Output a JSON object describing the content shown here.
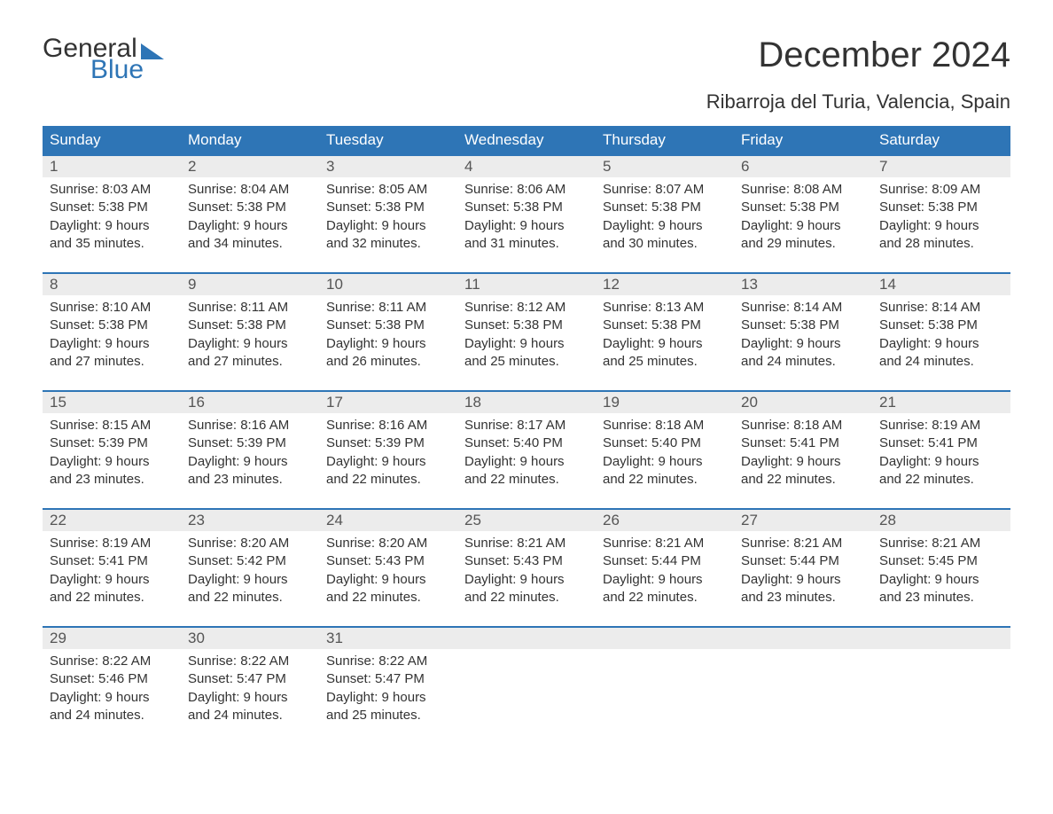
{
  "brand": {
    "word1": "General",
    "word2": "Blue",
    "color_dark": "#333333",
    "color_blue": "#2e75b6"
  },
  "title": "December 2024",
  "location": "Ribarroja del Turia, Valencia, Spain",
  "styling": {
    "header_bg": "#2e75b6",
    "header_text": "#ffffff",
    "daynum_bg": "#ececec",
    "body_text": "#333333",
    "page_bg": "#ffffff",
    "week_border": "#2e75b6",
    "title_fontsize": 40,
    "location_fontsize": 22,
    "head_fontsize": 17,
    "day_fontsize": 15
  },
  "weekdays": [
    "Sunday",
    "Monday",
    "Tuesday",
    "Wednesday",
    "Thursday",
    "Friday",
    "Saturday"
  ],
  "weeks": [
    [
      {
        "n": "1",
        "sunrise": "Sunrise: 8:03 AM",
        "sunset": "Sunset: 5:38 PM",
        "d1": "Daylight: 9 hours",
        "d2": "and 35 minutes."
      },
      {
        "n": "2",
        "sunrise": "Sunrise: 8:04 AM",
        "sunset": "Sunset: 5:38 PM",
        "d1": "Daylight: 9 hours",
        "d2": "and 34 minutes."
      },
      {
        "n": "3",
        "sunrise": "Sunrise: 8:05 AM",
        "sunset": "Sunset: 5:38 PM",
        "d1": "Daylight: 9 hours",
        "d2": "and 32 minutes."
      },
      {
        "n": "4",
        "sunrise": "Sunrise: 8:06 AM",
        "sunset": "Sunset: 5:38 PM",
        "d1": "Daylight: 9 hours",
        "d2": "and 31 minutes."
      },
      {
        "n": "5",
        "sunrise": "Sunrise: 8:07 AM",
        "sunset": "Sunset: 5:38 PM",
        "d1": "Daylight: 9 hours",
        "d2": "and 30 minutes."
      },
      {
        "n": "6",
        "sunrise": "Sunrise: 8:08 AM",
        "sunset": "Sunset: 5:38 PM",
        "d1": "Daylight: 9 hours",
        "d2": "and 29 minutes."
      },
      {
        "n": "7",
        "sunrise": "Sunrise: 8:09 AM",
        "sunset": "Sunset: 5:38 PM",
        "d1": "Daylight: 9 hours",
        "d2": "and 28 minutes."
      }
    ],
    [
      {
        "n": "8",
        "sunrise": "Sunrise: 8:10 AM",
        "sunset": "Sunset: 5:38 PM",
        "d1": "Daylight: 9 hours",
        "d2": "and 27 minutes."
      },
      {
        "n": "9",
        "sunrise": "Sunrise: 8:11 AM",
        "sunset": "Sunset: 5:38 PM",
        "d1": "Daylight: 9 hours",
        "d2": "and 27 minutes."
      },
      {
        "n": "10",
        "sunrise": "Sunrise: 8:11 AM",
        "sunset": "Sunset: 5:38 PM",
        "d1": "Daylight: 9 hours",
        "d2": "and 26 minutes."
      },
      {
        "n": "11",
        "sunrise": "Sunrise: 8:12 AM",
        "sunset": "Sunset: 5:38 PM",
        "d1": "Daylight: 9 hours",
        "d2": "and 25 minutes."
      },
      {
        "n": "12",
        "sunrise": "Sunrise: 8:13 AM",
        "sunset": "Sunset: 5:38 PM",
        "d1": "Daylight: 9 hours",
        "d2": "and 25 minutes."
      },
      {
        "n": "13",
        "sunrise": "Sunrise: 8:14 AM",
        "sunset": "Sunset: 5:38 PM",
        "d1": "Daylight: 9 hours",
        "d2": "and 24 minutes."
      },
      {
        "n": "14",
        "sunrise": "Sunrise: 8:14 AM",
        "sunset": "Sunset: 5:38 PM",
        "d1": "Daylight: 9 hours",
        "d2": "and 24 minutes."
      }
    ],
    [
      {
        "n": "15",
        "sunrise": "Sunrise: 8:15 AM",
        "sunset": "Sunset: 5:39 PM",
        "d1": "Daylight: 9 hours",
        "d2": "and 23 minutes."
      },
      {
        "n": "16",
        "sunrise": "Sunrise: 8:16 AM",
        "sunset": "Sunset: 5:39 PM",
        "d1": "Daylight: 9 hours",
        "d2": "and 23 minutes."
      },
      {
        "n": "17",
        "sunrise": "Sunrise: 8:16 AM",
        "sunset": "Sunset: 5:39 PM",
        "d1": "Daylight: 9 hours",
        "d2": "and 22 minutes."
      },
      {
        "n": "18",
        "sunrise": "Sunrise: 8:17 AM",
        "sunset": "Sunset: 5:40 PM",
        "d1": "Daylight: 9 hours",
        "d2": "and 22 minutes."
      },
      {
        "n": "19",
        "sunrise": "Sunrise: 8:18 AM",
        "sunset": "Sunset: 5:40 PM",
        "d1": "Daylight: 9 hours",
        "d2": "and 22 minutes."
      },
      {
        "n": "20",
        "sunrise": "Sunrise: 8:18 AM",
        "sunset": "Sunset: 5:41 PM",
        "d1": "Daylight: 9 hours",
        "d2": "and 22 minutes."
      },
      {
        "n": "21",
        "sunrise": "Sunrise: 8:19 AM",
        "sunset": "Sunset: 5:41 PM",
        "d1": "Daylight: 9 hours",
        "d2": "and 22 minutes."
      }
    ],
    [
      {
        "n": "22",
        "sunrise": "Sunrise: 8:19 AM",
        "sunset": "Sunset: 5:41 PM",
        "d1": "Daylight: 9 hours",
        "d2": "and 22 minutes."
      },
      {
        "n": "23",
        "sunrise": "Sunrise: 8:20 AM",
        "sunset": "Sunset: 5:42 PM",
        "d1": "Daylight: 9 hours",
        "d2": "and 22 minutes."
      },
      {
        "n": "24",
        "sunrise": "Sunrise: 8:20 AM",
        "sunset": "Sunset: 5:43 PM",
        "d1": "Daylight: 9 hours",
        "d2": "and 22 minutes."
      },
      {
        "n": "25",
        "sunrise": "Sunrise: 8:21 AM",
        "sunset": "Sunset: 5:43 PM",
        "d1": "Daylight: 9 hours",
        "d2": "and 22 minutes."
      },
      {
        "n": "26",
        "sunrise": "Sunrise: 8:21 AM",
        "sunset": "Sunset: 5:44 PM",
        "d1": "Daylight: 9 hours",
        "d2": "and 22 minutes."
      },
      {
        "n": "27",
        "sunrise": "Sunrise: 8:21 AM",
        "sunset": "Sunset: 5:44 PM",
        "d1": "Daylight: 9 hours",
        "d2": "and 23 minutes."
      },
      {
        "n": "28",
        "sunrise": "Sunrise: 8:21 AM",
        "sunset": "Sunset: 5:45 PM",
        "d1": "Daylight: 9 hours",
        "d2": "and 23 minutes."
      }
    ],
    [
      {
        "n": "29",
        "sunrise": "Sunrise: 8:22 AM",
        "sunset": "Sunset: 5:46 PM",
        "d1": "Daylight: 9 hours",
        "d2": "and 24 minutes."
      },
      {
        "n": "30",
        "sunrise": "Sunrise: 8:22 AM",
        "sunset": "Sunset: 5:47 PM",
        "d1": "Daylight: 9 hours",
        "d2": "and 24 minutes."
      },
      {
        "n": "31",
        "sunrise": "Sunrise: 8:22 AM",
        "sunset": "Sunset: 5:47 PM",
        "d1": "Daylight: 9 hours",
        "d2": "and 25 minutes."
      },
      null,
      null,
      null,
      null
    ]
  ]
}
